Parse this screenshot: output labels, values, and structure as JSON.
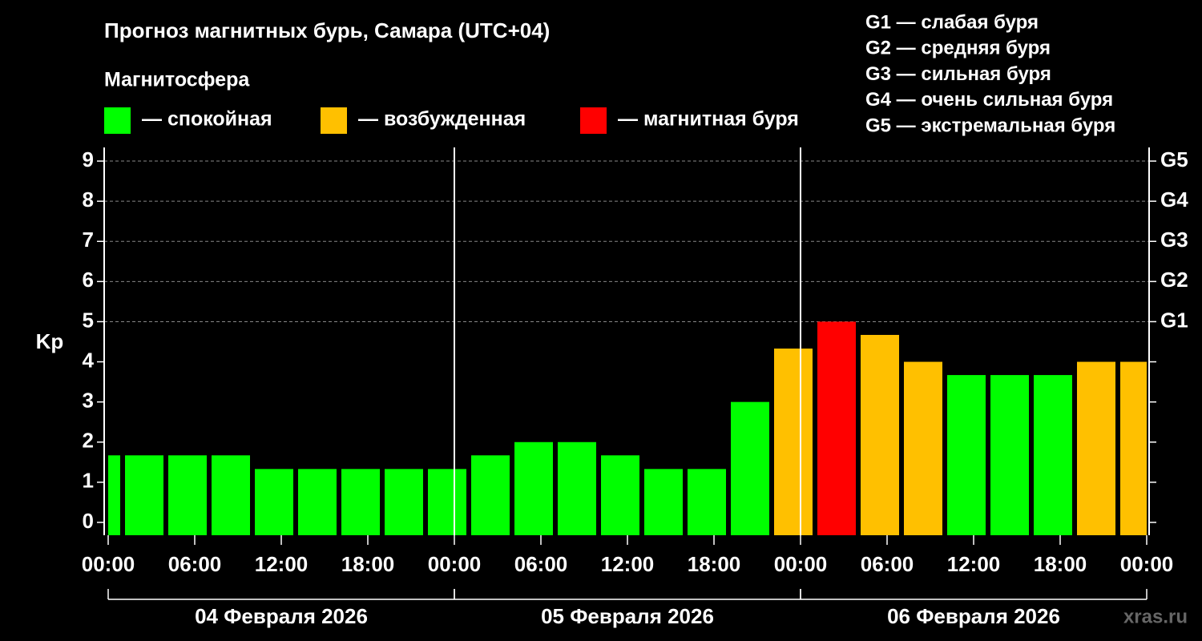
{
  "chart_data": {
    "type": "bar",
    "title": "Прогноз магнитных бурь, Самара (UTC+04)",
    "legend_title": "Магнитосфера",
    "legend": [
      {
        "name": "— спокойная",
        "color": "#00ff00"
      },
      {
        "name": "— возбужденная",
        "color": "#ffc000"
      },
      {
        "name": "— магнитная буря",
        "color": "#ff0000"
      }
    ],
    "scale_notes": [
      "G1 — слабая буря",
      "G2 — средняя буря",
      "G3 — сильная буря",
      "G4 — очень сильная буря",
      "G5 — экстремальная буря"
    ],
    "ylabel": "Kp",
    "x": [
      -0.5,
      2.5,
      5.5,
      8.5,
      11.5,
      14.5,
      17.5,
      20.5,
      23.5,
      26.5,
      29.5,
      32.5,
      35.5,
      38.5,
      41.5,
      44.5,
      47.5,
      50.5,
      53.5,
      56.5,
      59.5,
      62.5,
      65.5,
      68.5,
      71.5
    ],
    "values": [
      1.67,
      1.67,
      1.67,
      1.67,
      1.33,
      1.33,
      1.33,
      1.33,
      1.33,
      1.67,
      2,
      2,
      1.67,
      1.33,
      1.33,
      3,
      4.33,
      5,
      4.67,
      4,
      3.67,
      3.67,
      3.67,
      4,
      4
    ],
    "colors": [
      "#00ff00",
      "#00ff00",
      "#00ff00",
      "#00ff00",
      "#00ff00",
      "#00ff00",
      "#00ff00",
      "#00ff00",
      "#00ff00",
      "#00ff00",
      "#00ff00",
      "#00ff00",
      "#00ff00",
      "#00ff00",
      "#00ff00",
      "#00ff00",
      "#ffc000",
      "#ff0000",
      "#ffc000",
      "#ffc000",
      "#00ff00",
      "#00ff00",
      "#00ff00",
      "#ffc000",
      "#ffc000"
    ],
    "xlim": [
      0,
      72
    ],
    "xticks": [
      {
        "value": 0,
        "label": "00:00"
      },
      {
        "value": 6,
        "label": "06:00"
      },
      {
        "value": 12,
        "label": "12:00"
      },
      {
        "value": 18,
        "label": "18:00"
      },
      {
        "value": 24,
        "label": "00:00"
      },
      {
        "value": 30,
        "label": "06:00"
      },
      {
        "value": 36,
        "label": "12:00"
      },
      {
        "value": 42,
        "label": "18:00"
      },
      {
        "value": 48,
        "label": "00:00"
      },
      {
        "value": 54,
        "label": "06:00"
      },
      {
        "value": 60,
        "label": "12:00"
      },
      {
        "value": 66,
        "label": "18:00"
      },
      {
        "value": 72,
        "label": "00:00"
      }
    ],
    "days": [
      "04 Февраля 2026",
      "05 Февраля 2026",
      "06 Февраля 2026"
    ],
    "ylim": [
      -0.32,
      9.34
    ],
    "yticks": [
      0,
      1,
      2,
      3,
      4,
      5,
      6,
      7,
      8,
      9
    ],
    "y2ticks": [
      {
        "value": 5,
        "label": "G1"
      },
      {
        "value": 6,
        "label": "G2"
      },
      {
        "value": 7,
        "label": "G3"
      },
      {
        "value": 8,
        "label": "G4"
      },
      {
        "value": 9,
        "label": "G5"
      }
    ],
    "grid": true,
    "watermark": "xras.ru"
  }
}
